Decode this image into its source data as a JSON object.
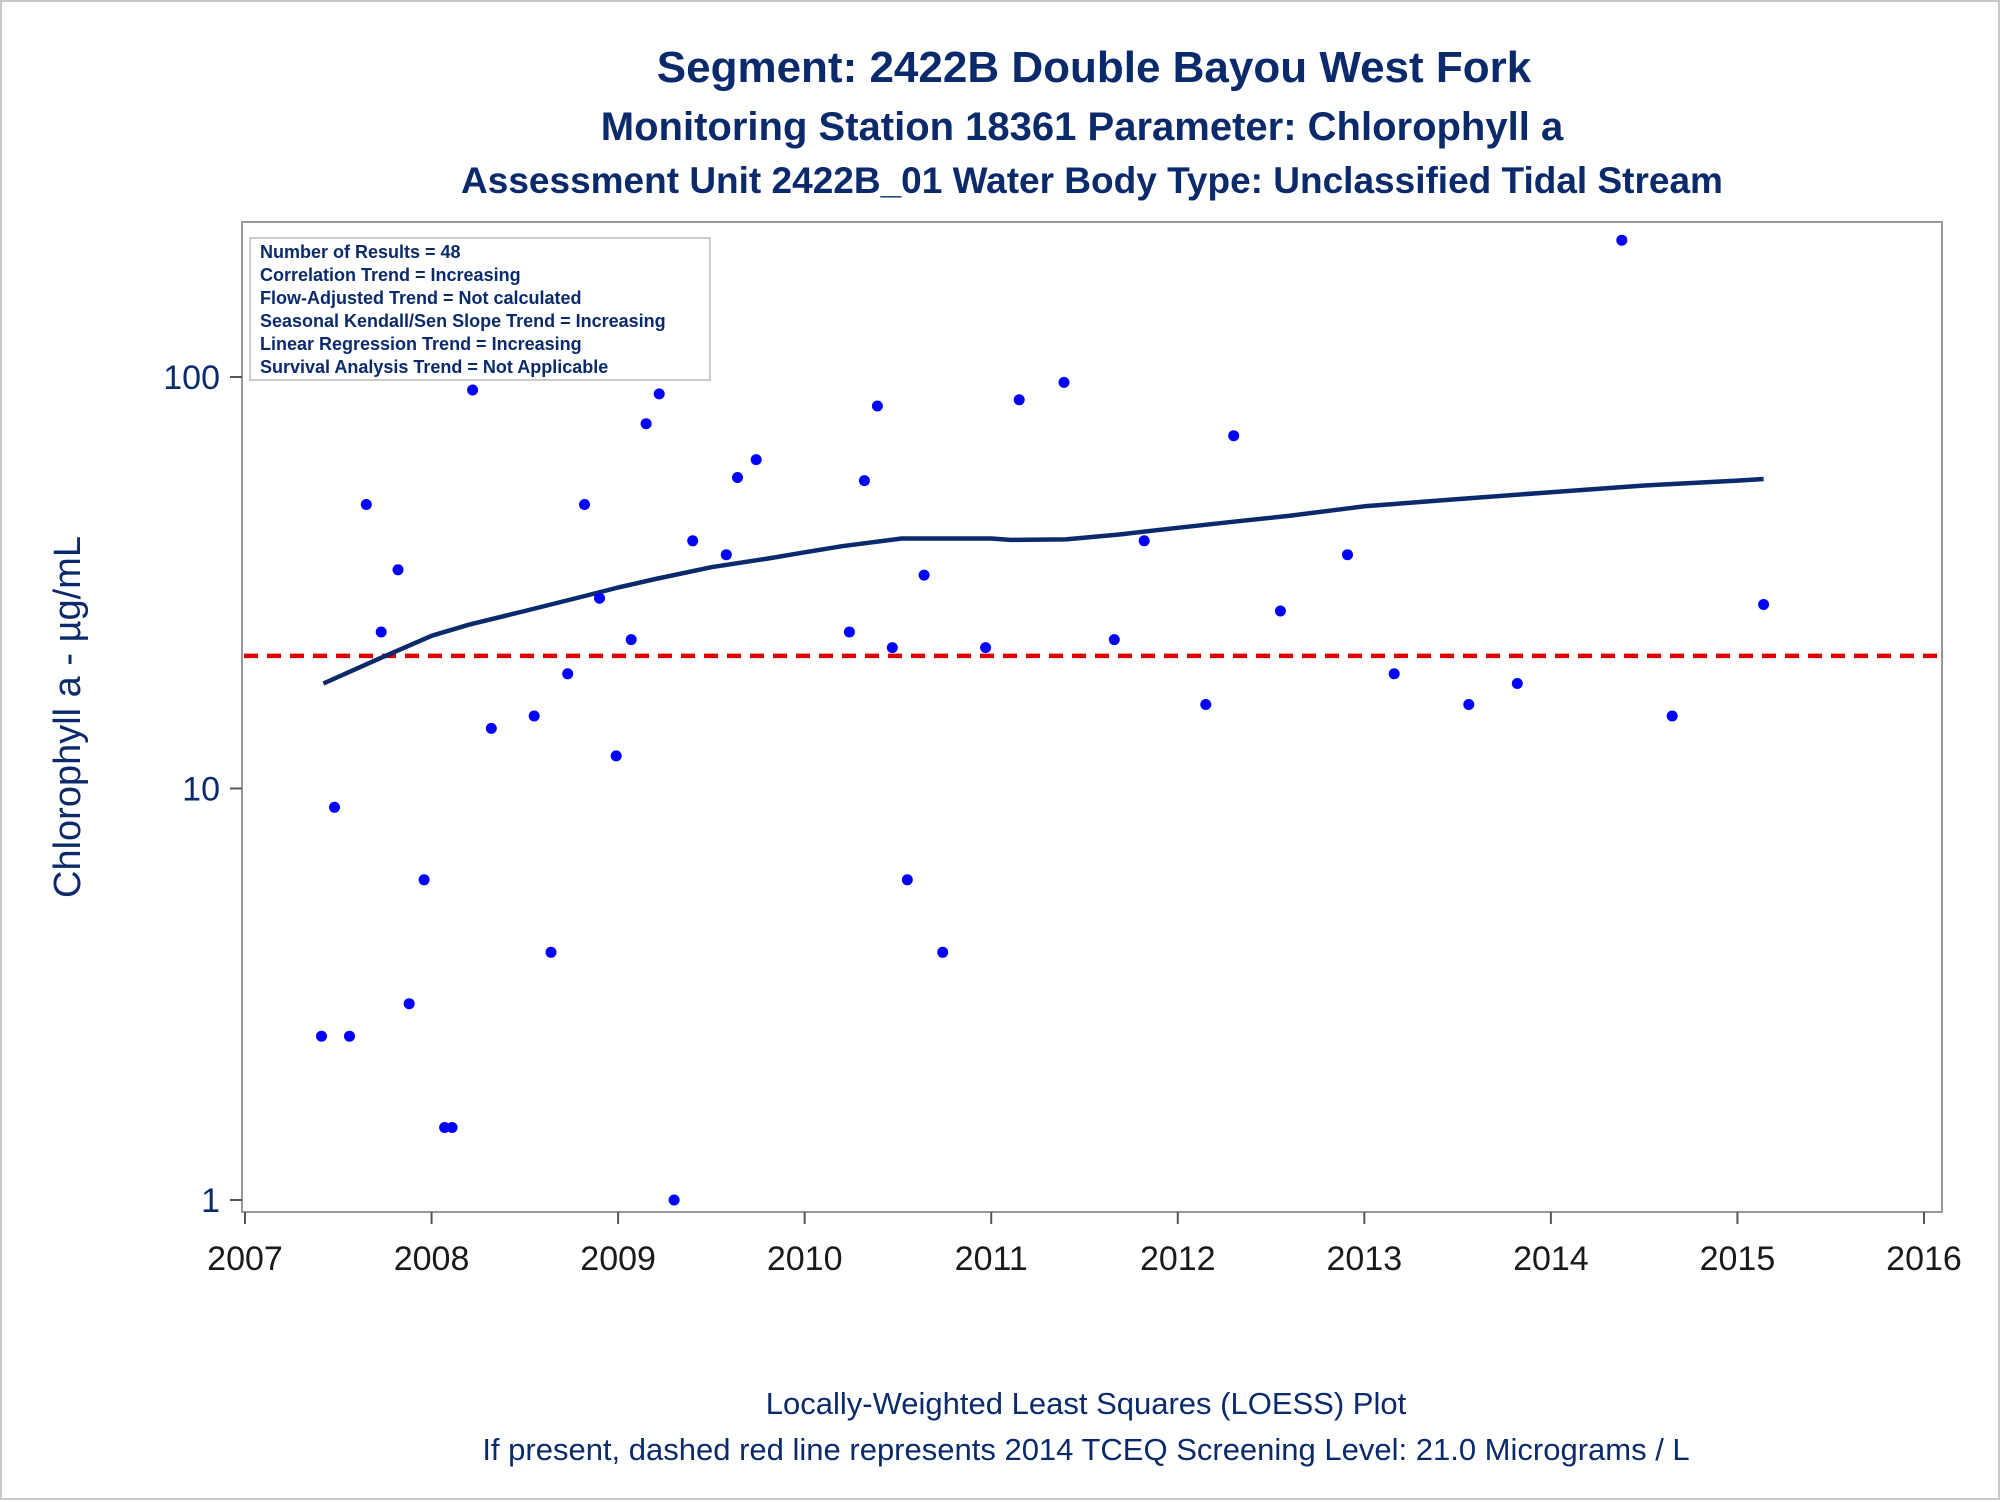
{
  "titles": {
    "line1": "Segment: 2422B  Double Bayou West Fork",
    "line2": "Monitoring Station 18361 Parameter: Chlorophyll a",
    "line3": "Assessment Unit 2422B_01   Water Body Type: Unclassified Tidal Stream"
  },
  "stats_box": [
    "Number of Results = 48",
    "Correlation Trend = Increasing",
    "Flow-Adjusted Trend = Not calculated",
    "Seasonal Kendall/Sen Slope Trend = Increasing",
    "Linear Regression Trend = Increasing",
    "Survival Analysis Trend = Not Applicable"
  ],
  "footnotes": {
    "line1": "Locally-Weighted Least Squares (LOESS) Plot",
    "line2": "If present, dashed red line represents 2014 TCEQ Screening Level: 21.0 Micrograms / L"
  },
  "colors": {
    "title": "#0b2a6b",
    "points": "#0000ff",
    "loess": "#0b2a6b",
    "screening": "#dd0000",
    "axis": "#888888"
  },
  "chart_data": {
    "type": "scatter",
    "title": "Segment: 2422B  Double Bayou West Fork",
    "xlabel": "",
    "ylabel": "Chlorophyll a -  µg/mL",
    "xlim": [
      2007,
      2016
    ],
    "ylim": [
      0.93,
      232
    ],
    "yscale": "log",
    "x_ticks": [
      "2007",
      "2008",
      "2009",
      "2010",
      "2011",
      "2012",
      "2013",
      "2014",
      "2015",
      "2016"
    ],
    "y_ticks": [
      "1",
      "10",
      "100"
    ],
    "grid": false,
    "points": [
      [
        2007.41,
        2.5
      ],
      [
        2007.48,
        9
      ],
      [
        2007.56,
        2.5
      ],
      [
        2007.65,
        49
      ],
      [
        2007.73,
        24
      ],
      [
        2007.82,
        34
      ],
      [
        2007.88,
        3
      ],
      [
        2007.96,
        6
      ],
      [
        2008.07,
        1.5
      ],
      [
        2008.11,
        1.5
      ],
      [
        2008.22,
        93
      ],
      [
        2008.32,
        14
      ],
      [
        2008.55,
        15
      ],
      [
        2008.64,
        4
      ],
      [
        2008.73,
        19
      ],
      [
        2008.82,
        49
      ],
      [
        2008.9,
        29
      ],
      [
        2008.99,
        12
      ],
      [
        2009.07,
        23
      ],
      [
        2009.15,
        77
      ],
      [
        2009.22,
        91
      ],
      [
        2009.3,
        1
      ],
      [
        2009.4,
        40
      ],
      [
        2009.58,
        37
      ],
      [
        2009.64,
        57
      ],
      [
        2009.74,
        63
      ],
      [
        2010.24,
        24
      ],
      [
        2010.32,
        56
      ],
      [
        2010.39,
        85
      ],
      [
        2010.47,
        22
      ],
      [
        2010.55,
        6
      ],
      [
        2010.64,
        33
      ],
      [
        2010.74,
        4
      ],
      [
        2010.97,
        22
      ],
      [
        2011.15,
        88
      ],
      [
        2011.39,
        97
      ],
      [
        2011.66,
        23
      ],
      [
        2011.82,
        40
      ],
      [
        2012.15,
        16
      ],
      [
        2012.3,
        72
      ],
      [
        2012.55,
        27
      ],
      [
        2012.91,
        37
      ],
      [
        2013.16,
        19
      ],
      [
        2013.56,
        16
      ],
      [
        2013.82,
        18
      ],
      [
        2014.38,
        215
      ],
      [
        2014.65,
        15
      ],
      [
        2015.14,
        28
      ]
    ],
    "series": [
      {
        "name": "LOESS",
        "type": "line",
        "x": [
          2007.42,
          2007.7,
          2008.0,
          2008.2,
          2008.5,
          2008.8,
          2009.0,
          2009.2,
          2009.5,
          2009.8,
          2010.0,
          2010.2,
          2010.52,
          2010.8,
          2011.0,
          2011.1,
          2011.4,
          2011.7,
          2012.0,
          2012.3,
          2012.6,
          2013.0,
          2013.5,
          2014.0,
          2014.5,
          2015.0,
          2015.14
        ],
        "y": [
          18,
          20.5,
          23.5,
          25,
          27,
          29.2,
          30.8,
          32.3,
          34.5,
          36.2,
          37.5,
          38.8,
          40.5,
          40.5,
          40.5,
          40.2,
          40.3,
          41.5,
          43,
          44.5,
          46,
          48.5,
          50.5,
          52.5,
          54.5,
          56,
          56.5
        ]
      }
    ],
    "reference_line": {
      "y": 21.0,
      "style": "dashed",
      "color": "red"
    }
  }
}
